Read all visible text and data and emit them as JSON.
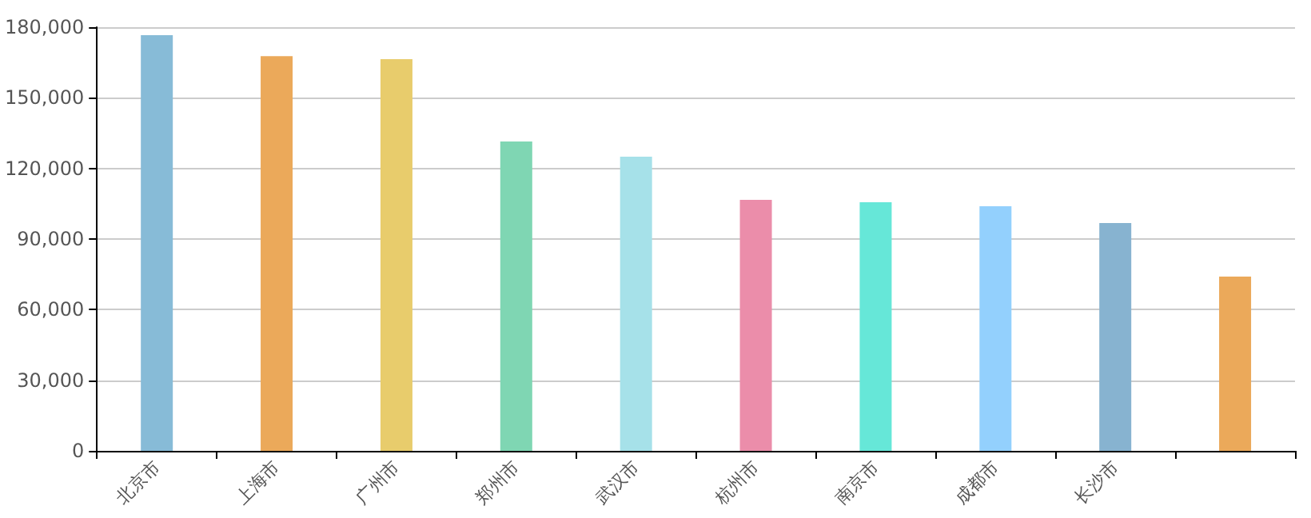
{
  "chart_data": {
    "type": "bar",
    "categories": [
      "北京市",
      "上海市",
      "广州市",
      "郑州市",
      "武汉市",
      "杭州市",
      "南京市",
      "成都市",
      "长沙市",
      null
    ],
    "values": [
      176600,
      167700,
      166400,
      131400,
      125000,
      106600,
      105600,
      103900,
      96800,
      74000
    ],
    "colors": [
      "#87bbd7",
      "#eba95a",
      "#e8cc6c",
      "#7fd6b3",
      "#a6e1e9",
      "#eb8daa",
      "#66e7d8",
      "#93d0fd",
      "#87b3d0",
      "#eba95a"
    ],
    "ylim": [
      0,
      180000
    ],
    "yticks": [
      0,
      {
        "value": 30000,
        "label": "30,000"
      },
      {
        "value": 60000,
        "label": "60,000"
      },
      {
        "value": 90000,
        "label": "90,000"
      },
      {
        "value": 120000,
        "label": "120,000"
      },
      {
        "value": 150000,
        "label": "150,000"
      },
      {
        "value": 180000,
        "label": "180,000"
      }
    ],
    "grid": "y"
  }
}
